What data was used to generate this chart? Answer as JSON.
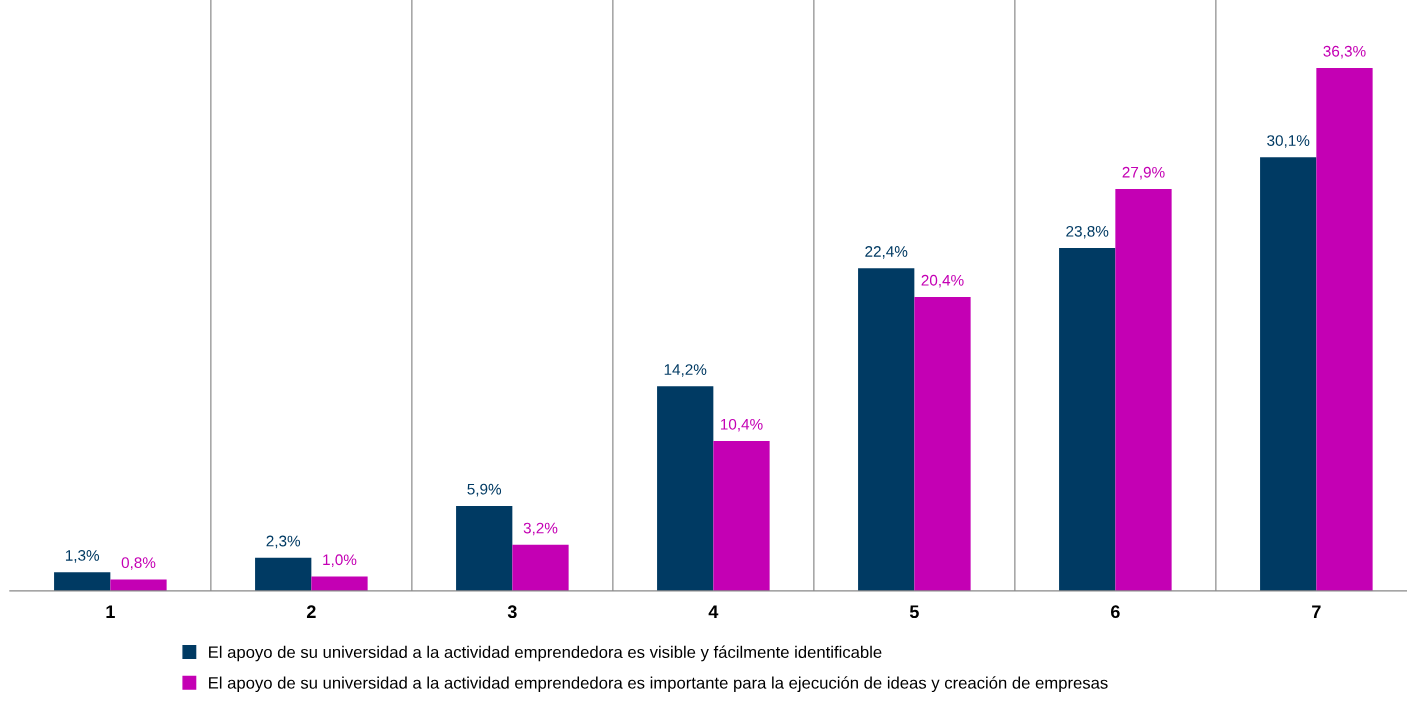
{
  "chart_data": {
    "type": "bar",
    "categories": [
      "1",
      "2",
      "3",
      "4",
      "5",
      "6",
      "7"
    ],
    "series": [
      {
        "name": "El apoyo de su universidad a la actividad emprendedora es visible y fácilmente identificable",
        "color": "#003a63",
        "values": [
          1.3,
          2.3,
          5.9,
          14.2,
          22.4,
          23.8,
          30.1
        ],
        "value_labels": [
          "1,3%",
          "2,3%",
          "5,9%",
          "14,2%",
          "22,4%",
          "23,8%",
          "30,1%"
        ]
      },
      {
        "name": "El apoyo de su universidad a la actividad emprendedora es importante para la ejecución de ideas y creación de empresas",
        "color": "#c400b4",
        "values": [
          0.8,
          1.0,
          3.2,
          10.4,
          20.4,
          27.9,
          36.3
        ],
        "value_labels": [
          "0,8%",
          "1,0%",
          "3,2%",
          "10,4%",
          "20,4%",
          "27,9%",
          "36,3%"
        ]
      }
    ],
    "grid": "x",
    "legend": "bottom",
    "tick_labels": "x"
  }
}
